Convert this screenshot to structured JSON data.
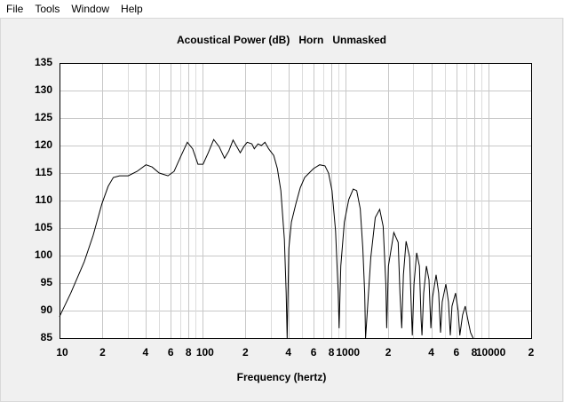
{
  "menu": [
    "File",
    "Tools",
    "Window",
    "Help"
  ],
  "chart_data": {
    "type": "line",
    "title": "Acoustical Power (dB)   Horn   Unmasked",
    "x_label": "Frequency (hertz)",
    "x_scale": "log",
    "grid": true,
    "color": "#000000",
    "xlim": [
      10,
      20000
    ],
    "ylim": [
      85,
      135
    ],
    "xticks": [
      10,
      {
        "value": 20,
        "label": "2"
      },
      {
        "value": 40,
        "label": "4"
      },
      {
        "value": 60,
        "label": "6"
      },
      {
        "value": 80,
        "label": "8"
      },
      100,
      {
        "value": 200,
        "label": "2"
      },
      {
        "value": 400,
        "label": "4"
      },
      {
        "value": 600,
        "label": "6"
      },
      {
        "value": 800,
        "label": "8"
      },
      1000,
      {
        "value": 2000,
        "label": "2"
      },
      {
        "value": 4000,
        "label": "4"
      },
      {
        "value": 6000,
        "label": "6"
      },
      {
        "value": 8000,
        "label": "8"
      },
      10000,
      {
        "value": 20000,
        "label": "2"
      }
    ],
    "x_minor_ticks": [
      30,
      50,
      70,
      90,
      300,
      500,
      700,
      900,
      3000,
      5000,
      7000,
      9000
    ],
    "yticks": [
      85,
      90,
      95,
      100,
      105,
      110,
      115,
      120,
      125,
      130,
      135
    ],
    "x": [
      10,
      12,
      14.9,
      17.2,
      19.8,
      21.9,
      23.8,
      26.3,
      30.3,
      34.9,
      40.3,
      44.5,
      49.9,
      57.4,
      63.4,
      71.1,
      78.5,
      85.5,
      93.1,
      101,
      110,
      120,
      131,
      143,
      153,
      164,
      174,
      184,
      195,
      206,
      222,
      231,
      245,
      259,
      274,
      291,
      316,
      335,
      354,
      375,
      386,
      392,
      403,
      420,
      451,
      484,
      520,
      558,
      600,
      662,
      721,
      764,
      808,
      855,
      893,
      906,
      931,
      986,
      1059,
      1138,
      1202,
      1274,
      1328,
      1367,
      1387,
      1510,
      1622,
      1741,
      1841,
      1922,
      1950,
      2005,
      2187,
      2346,
      2414,
      2483,
      2553,
      2667,
      2824,
      2904,
      2945,
      3027,
      3162,
      3302,
      3396,
      3443,
      3540,
      3698,
      3855,
      3972,
      4083,
      4325,
      4508,
      4645,
      4775,
      5058,
      5272,
      5433,
      5585,
      5916,
      6166,
      6339,
      6621,
      6918,
      7211,
      7534,
      7852
    ],
    "y": [
      88.9,
      93.2,
      98.9,
      103.7,
      109.4,
      112.6,
      114.2,
      114.5,
      114.5,
      115.3,
      116.5,
      116.1,
      115,
      114.5,
      115.3,
      118.2,
      120.6,
      119.4,
      116.6,
      116.6,
      118.7,
      121.1,
      119.8,
      117.7,
      119,
      121,
      119.8,
      118.7,
      119.8,
      120.6,
      120.3,
      119.4,
      120.3,
      120,
      120.6,
      119.4,
      118.2,
      115.8,
      111.8,
      102.9,
      93.2,
      85,
      101.3,
      106.1,
      109.4,
      112.3,
      114.2,
      115,
      115.8,
      116.5,
      116.3,
      115,
      111.8,
      104.5,
      93.2,
      86.8,
      98.1,
      106.1,
      110.2,
      112.1,
      111.8,
      108.5,
      101.3,
      93.2,
      85,
      99.7,
      106.9,
      108.4,
      105.3,
      94.8,
      86.8,
      98.1,
      104.2,
      102.4,
      93.2,
      86.8,
      96.5,
      102.6,
      99.7,
      90,
      85.5,
      94.8,
      100.5,
      98.1,
      88.4,
      85.5,
      93.2,
      98.1,
      95.6,
      86.8,
      92.4,
      96.5,
      93.2,
      86,
      91.6,
      94.8,
      91.6,
      85.5,
      90.8,
      93.2,
      90,
      85.5,
      89.2,
      90.8,
      88.4,
      86,
      85
    ]
  }
}
